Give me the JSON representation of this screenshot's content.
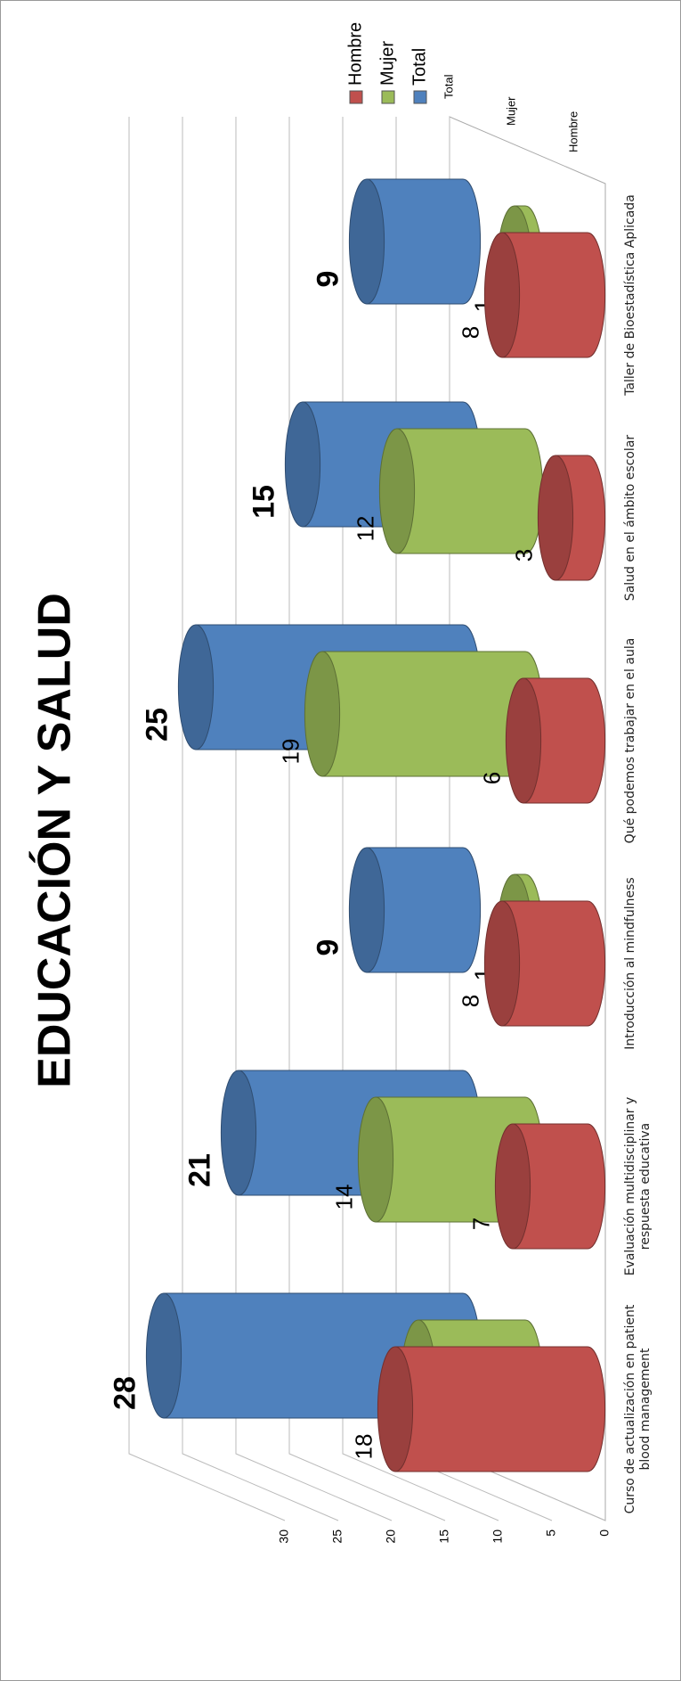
{
  "chart_data": {
    "type": "bar3d",
    "title": "EDUCACIÓN Y SALUD",
    "categories": [
      "Curso de actualización en patient blood management",
      "Evaluación multidisciplinar y respuesta educativa",
      "Introducción al mindfulness",
      "Qué podemos trabajar en el aula",
      "Salud en el ámbito escolar",
      "Taller de Bioestadística Aplicada"
    ],
    "series": [
      {
        "name": "Hombre",
        "color": "#c0504d",
        "values": [
          18,
          7,
          8,
          6,
          3,
          8
        ]
      },
      {
        "name": "Mujer",
        "color": "#9bbb59",
        "values": [
          10,
          14,
          1,
          19,
          12,
          1
        ]
      },
      {
        "name": "Total",
        "color": "#4f81bd",
        "values": [
          28,
          21,
          9,
          25,
          15,
          9
        ]
      }
    ],
    "ylim": [
      0,
      30
    ],
    "yticks": [
      0,
      5,
      10,
      15,
      20,
      25,
      30
    ],
    "grid": true,
    "legend": "right"
  }
}
